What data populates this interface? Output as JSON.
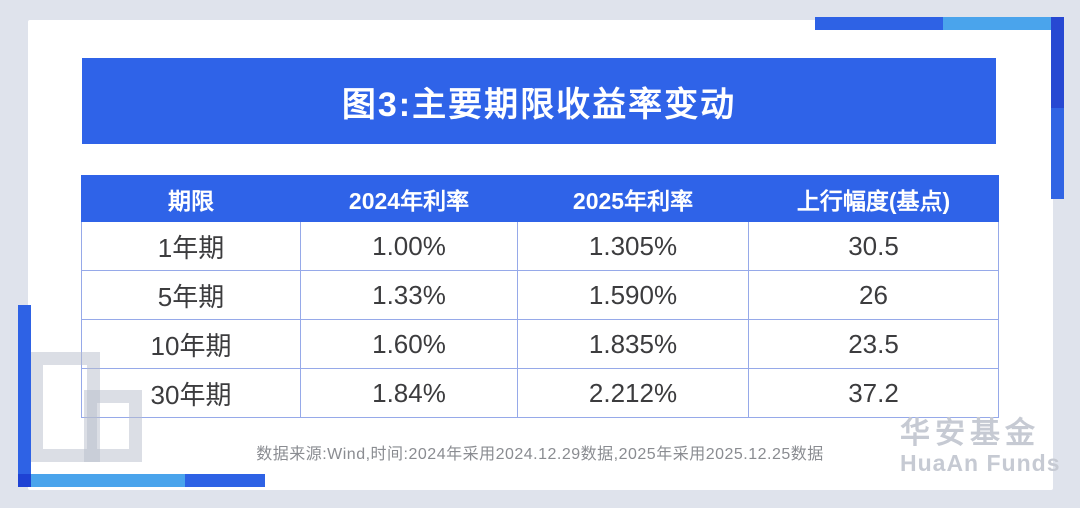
{
  "banner": {
    "title": "图3:主要期限收益率变动",
    "bg": "#2f63e8",
    "text_color": "#ffffff"
  },
  "table": {
    "columns": [
      "期限",
      "2024年利率",
      "2025年利率",
      "上行幅度(基点)"
    ],
    "rows": [
      [
        "1年期",
        "1.00%",
        "1.305%",
        "30.5"
      ],
      [
        "5年期",
        "1.33%",
        "1.590%",
        "26"
      ],
      [
        "10年期",
        "1.60%",
        "1.835%",
        "23.5"
      ],
      [
        "30年期",
        "1.84%",
        "2.212%",
        "37.2"
      ]
    ],
    "header_bg": "#2f63e8",
    "border_color": "#96a9e9"
  },
  "chart_data": {
    "type": "table",
    "title": "图3:主要期限收益率变动",
    "categories": [
      "1年期",
      "5年期",
      "10年期",
      "30年期"
    ],
    "series": [
      {
        "name": "2024年利率",
        "unit": "%",
        "values": [
          1.0,
          1.33,
          1.6,
          1.84
        ]
      },
      {
        "name": "2025年利率",
        "unit": "%",
        "values": [
          1.305,
          1.59,
          1.835,
          2.212
        ]
      },
      {
        "name": "上行幅度(基点)",
        "unit": "bp",
        "values": [
          30.5,
          26,
          23.5,
          37.2
        ]
      }
    ],
    "source_note": "数据来源:Wind,时间:2024年采用2024.12.29数据,2025年采用2025.12.25数据"
  },
  "footnote": {
    "text": "数据来源:Wind,时间:2024年采用2024.12.29数据,2025年采用2025.12.25数据"
  },
  "logo": {
    "cn": "华安基金",
    "en": "HuaAn Funds"
  },
  "colors": {
    "background": "#dfe3ec",
    "card": "#ffffff",
    "primary_blue": "#2f63e8",
    "sky_blue": "#4aa4ec",
    "deep_blue": "#2748d2",
    "table_border": "#96a9e9",
    "cell_text": "#3c3c3e",
    "footnote_text": "#8a8c91",
    "logo_gray": "#c6cad3"
  }
}
